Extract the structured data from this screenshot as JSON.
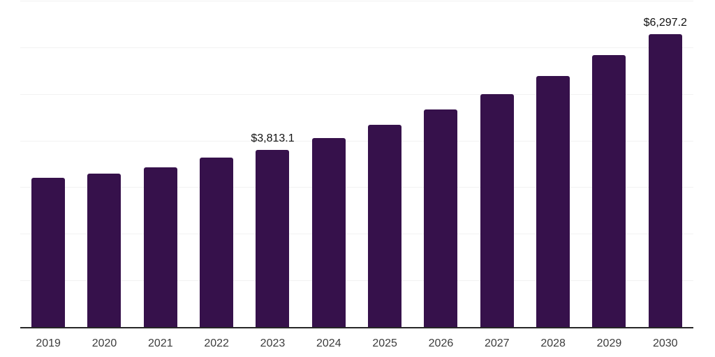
{
  "chart_data": {
    "type": "bar",
    "categories": [
      "2019",
      "2020",
      "2021",
      "2022",
      "2023",
      "2024",
      "2025",
      "2026",
      "2027",
      "2028",
      "2029",
      "2030"
    ],
    "values": [
      3210,
      3310,
      3445,
      3645,
      3813.1,
      4070,
      4355,
      4680,
      5015,
      5400,
      5850,
      6297.2
    ],
    "value_labels": [
      null,
      null,
      null,
      null,
      "$3,813.1",
      null,
      null,
      null,
      null,
      null,
      null,
      "$6,297.2"
    ],
    "ylim": [
      0,
      7000
    ],
    "grid_interval": 1000,
    "grid": true,
    "legend": false,
    "colors": {
      "bar": "#36114B",
      "axis_line": "#262626",
      "grid_line": "#f2f2f2",
      "tick_label": "#3c3c3c",
      "value_label": "#111111"
    }
  }
}
